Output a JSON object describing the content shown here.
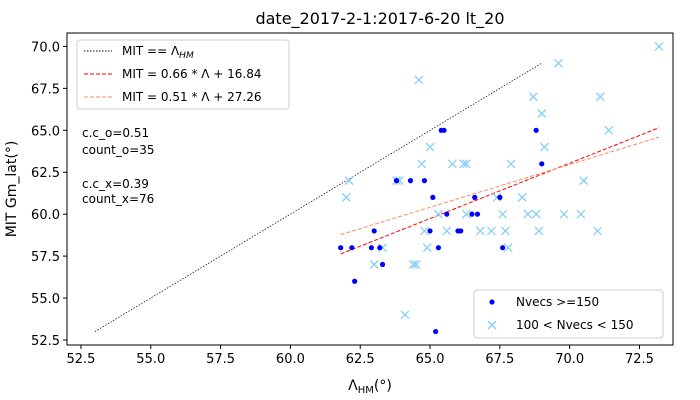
{
  "chart_data": {
    "type": "scatter",
    "title": "date_2017-2-1:2017-6-20  lt_20",
    "xlabel": "Λ",
    "xlabel_sub": "HM",
    "xlabel_unit": "(°)",
    "ylabel": "MIT Gm_lat(°)",
    "xlim": [
      52.0,
      73.7
    ],
    "ylim": [
      52.2,
      70.8
    ],
    "xticks": [
      "52.5",
      "55.0",
      "57.5",
      "60.0",
      "62.5",
      "65.0",
      "67.5",
      "70.0",
      "72.5"
    ],
    "xtick_values": [
      52.5,
      55.0,
      57.5,
      60.0,
      62.5,
      65.0,
      67.5,
      70.0,
      72.5
    ],
    "yticks": [
      "52.5",
      "55.0",
      "57.5",
      "60.0",
      "62.5",
      "65.0",
      "67.5",
      "70.0"
    ],
    "ytick_values": [
      52.5,
      55.0,
      57.5,
      60.0,
      62.5,
      65.0,
      67.5,
      70.0
    ],
    "grid": false,
    "stats": [
      {
        "text": "c.c_o=0.51"
      },
      {
        "text": "count_o=35"
      },
      {
        "text": "c.c_x=0.39"
      },
      {
        "text": "count_x=76"
      }
    ],
    "lines": [
      {
        "name": "MIT == Λ",
        "name_sub": "HM",
        "color": "#000000",
        "style": "dotted",
        "x": [
          53.0,
          69.0
        ],
        "y": [
          53.0,
          69.0
        ]
      },
      {
        "name": "MIT = 0.66 * Λ + 16.84",
        "color": "#ff0000",
        "style": "dashed",
        "slope": 0.66,
        "intercept": 16.84,
        "x": [
          61.8,
          73.2
        ]
      },
      {
        "name": "MIT = 0.51 * Λ + 27.26",
        "color": "#fa8c64",
        "style": "dashed",
        "slope": 0.51,
        "intercept": 27.26,
        "x": [
          61.8,
          73.2
        ]
      }
    ],
    "series": [
      {
        "name": "Nvecs >=150",
        "marker": "dot",
        "color": "#0000ff",
        "points": [
          [
            61.8,
            58.0
          ],
          [
            62.2,
            58.0
          ],
          [
            62.3,
            56.0
          ],
          [
            62.9,
            58.0
          ],
          [
            63.0,
            59.0
          ],
          [
            63.2,
            58.0
          ],
          [
            63.3,
            57.0
          ],
          [
            63.8,
            62.0
          ],
          [
            64.3,
            62.0
          ],
          [
            64.8,
            62.0
          ],
          [
            65.0,
            59.0
          ],
          [
            65.1,
            61.0
          ],
          [
            65.2,
            53.0
          ],
          [
            65.3,
            58.0
          ],
          [
            65.4,
            65.0
          ],
          [
            65.5,
            65.0
          ],
          [
            65.6,
            60.0
          ],
          [
            66.0,
            59.0
          ],
          [
            66.1,
            59.0
          ],
          [
            66.5,
            60.0
          ],
          [
            66.6,
            61.0
          ],
          [
            66.7,
            60.0
          ],
          [
            67.5,
            61.0
          ],
          [
            67.6,
            58.0
          ],
          [
            68.8,
            65.0
          ],
          [
            69.0,
            63.0
          ]
        ]
      },
      {
        "name": "100 < Nvecs < 150",
        "marker": "x",
        "color": "#87cefa",
        "points": [
          [
            62.0,
            61.0
          ],
          [
            62.1,
            62.0
          ],
          [
            63.0,
            57.0
          ],
          [
            63.3,
            58.0
          ],
          [
            63.8,
            62.0
          ],
          [
            63.9,
            62.0
          ],
          [
            64.1,
            54.0
          ],
          [
            64.4,
            57.0
          ],
          [
            64.5,
            57.0
          ],
          [
            64.6,
            68.0
          ],
          [
            64.7,
            63.0
          ],
          [
            64.8,
            59.0
          ],
          [
            64.9,
            58.0
          ],
          [
            65.0,
            64.0
          ],
          [
            65.3,
            60.0
          ],
          [
            65.6,
            59.0
          ],
          [
            65.8,
            63.0
          ],
          [
            66.2,
            63.0
          ],
          [
            66.3,
            63.0
          ],
          [
            66.3,
            60.0
          ],
          [
            66.8,
            59.0
          ],
          [
            67.2,
            59.0
          ],
          [
            67.4,
            61.0
          ],
          [
            67.6,
            60.0
          ],
          [
            67.7,
            59.0
          ],
          [
            67.8,
            58.0
          ],
          [
            67.9,
            63.0
          ],
          [
            68.3,
            61.0
          ],
          [
            68.5,
            60.0
          ],
          [
            68.7,
            67.0
          ],
          [
            68.8,
            60.0
          ],
          [
            68.9,
            59.0
          ],
          [
            69.0,
            66.0
          ],
          [
            69.1,
            64.0
          ],
          [
            69.6,
            69.0
          ],
          [
            69.8,
            60.0
          ],
          [
            70.4,
            60.0
          ],
          [
            70.5,
            62.0
          ],
          [
            71.0,
            59.0
          ],
          [
            71.1,
            67.0
          ],
          [
            71.4,
            65.0
          ],
          [
            73.2,
            70.0
          ]
        ]
      }
    ],
    "legend_upper": "top-left",
    "legend_lower": "bottom-right"
  }
}
